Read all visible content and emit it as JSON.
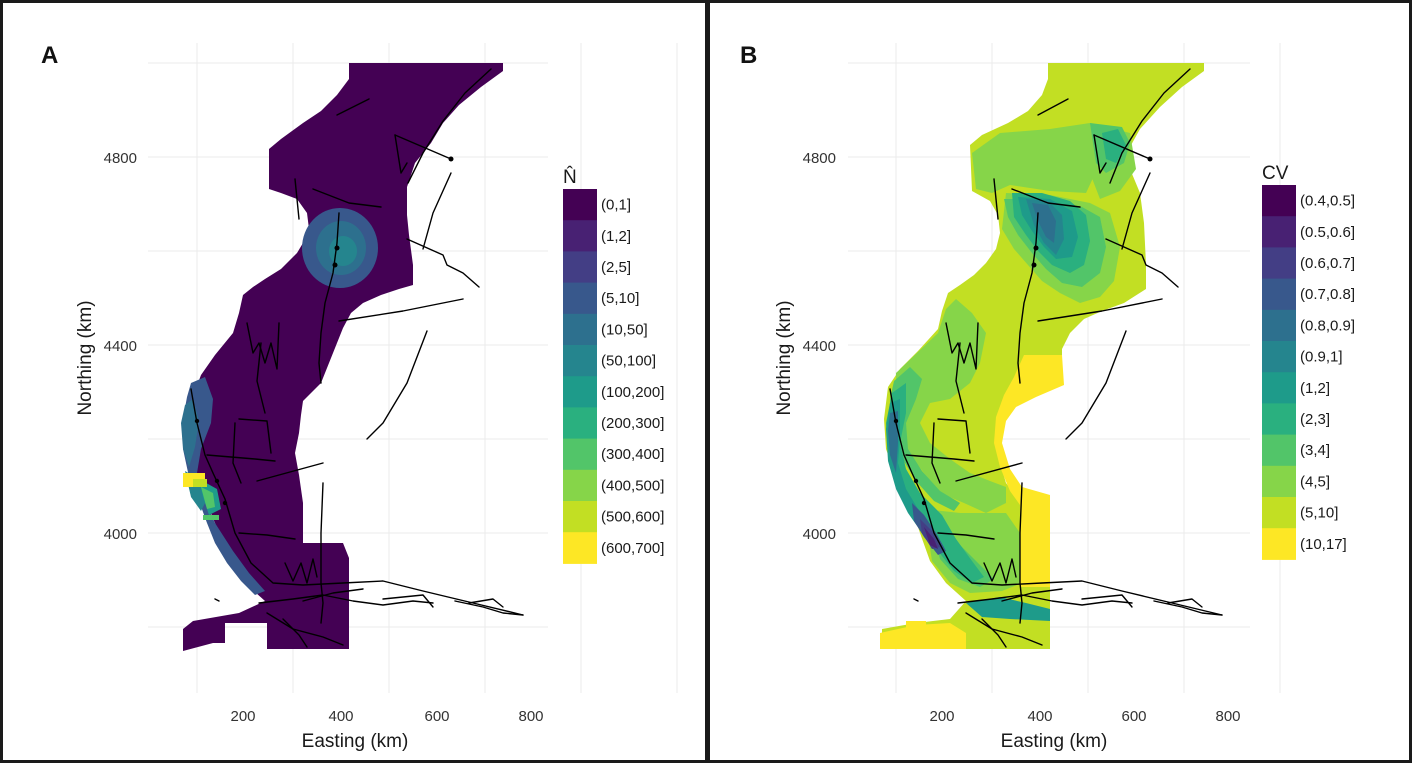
{
  "panels": [
    {
      "label": "A",
      "legend": {
        "title": "N̂",
        "entries": [
          {
            "label": "(0,1]",
            "color": "#440154"
          },
          {
            "label": "(1,2]",
            "color": "#482173"
          },
          {
            "label": "(2,5]",
            "color": "#433e85"
          },
          {
            "label": "(5,10]",
            "color": "#38588c"
          },
          {
            "label": "(10,50]",
            "color": "#2d708e"
          },
          {
            "label": "(50,100]",
            "color": "#25858e"
          },
          {
            "label": "(100,200]",
            "color": "#1e9b8a"
          },
          {
            "label": "(200,300]",
            "color": "#2ab07f"
          },
          {
            "label": "(300,400]",
            "color": "#52c569"
          },
          {
            "label": "(400,500]",
            "color": "#86d549"
          },
          {
            "label": "(500,600]",
            "color": "#c2df23"
          },
          {
            "label": "(600,700]",
            "color": "#fde725"
          }
        ]
      }
    },
    {
      "label": "B",
      "legend": {
        "title": "CV",
        "entries": [
          {
            "label": "(0.4,0.5]",
            "color": "#440154"
          },
          {
            "label": "(0.5,0.6]",
            "color": "#482173"
          },
          {
            "label": "(0.6,0.7]",
            "color": "#433e85"
          },
          {
            "label": "(0.7,0.8]",
            "color": "#38588c"
          },
          {
            "label": "(0.8,0.9]",
            "color": "#2d708e"
          },
          {
            "label": "(0.9,1]",
            "color": "#25858e"
          },
          {
            "label": "(1,2]",
            "color": "#1e9b8a"
          },
          {
            "label": "(2,3]",
            "color": "#2ab07f"
          },
          {
            "label": "(3,4]",
            "color": "#52c569"
          },
          {
            "label": "(4,5]",
            "color": "#86d549"
          },
          {
            "label": "(5,10]",
            "color": "#c2df23"
          },
          {
            "label": "(10,17]",
            "color": "#fde725"
          }
        ]
      }
    }
  ],
  "axes": {
    "xlabel": "Easting (km)",
    "ylabel": "Northing (km)",
    "x_ticks": [
      200,
      400,
      600,
      800
    ],
    "y_ticks": [
      4000,
      4400,
      4800
    ]
  }
}
